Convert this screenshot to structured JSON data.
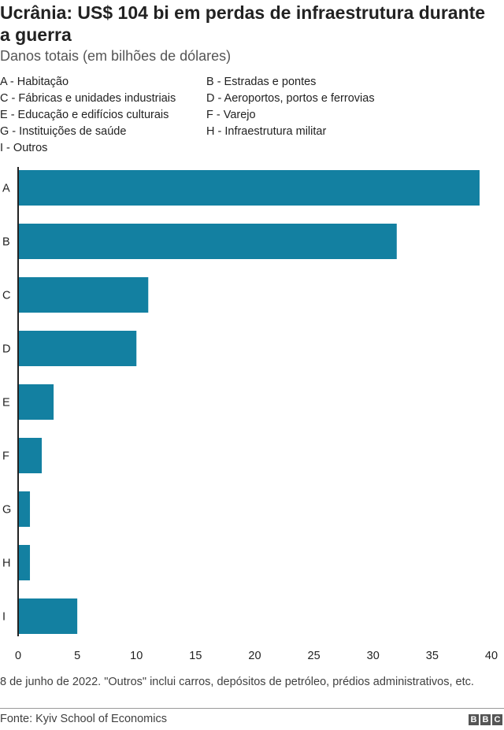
{
  "title": "Ucrânia: US$ 104 bi em perdas de infraestrutura durante a guerra",
  "subtitle": "Danos totais (em bilhões de dólares)",
  "legend": [
    "A - Habitação",
    "B - Estradas e pontes",
    "C - Fábricas e unidades industriais",
    "D - Aeroportos, portos e ferrovias",
    "E - Educação e edifícios culturais",
    "F - Varejo",
    "G - Instituições de saúde",
    "H - Infraestrutura militar",
    "I - Outros"
  ],
  "note": "8 de junho de 2022. \"Outros\" inclui carros, depósitos de petróleo, prédios administrativos, etc.",
  "source": "Fonte: Kyiv School of Economics",
  "logo": [
    "B",
    "B",
    "C"
  ],
  "colors": {
    "bar": "#1380a1",
    "axis": "#222222"
  },
  "chart_data": {
    "type": "bar",
    "orientation": "horizontal",
    "categories": [
      "A",
      "B",
      "C",
      "D",
      "E",
      "F",
      "G",
      "H",
      "I"
    ],
    "values": [
      39,
      32,
      11,
      10,
      3,
      2,
      1,
      1,
      5
    ],
    "xlim": [
      0,
      40
    ],
    "xticks": [
      0,
      5,
      10,
      15,
      20,
      25,
      30,
      35,
      40
    ],
    "xlabel": "",
    "ylabel": "",
    "grid": false
  }
}
